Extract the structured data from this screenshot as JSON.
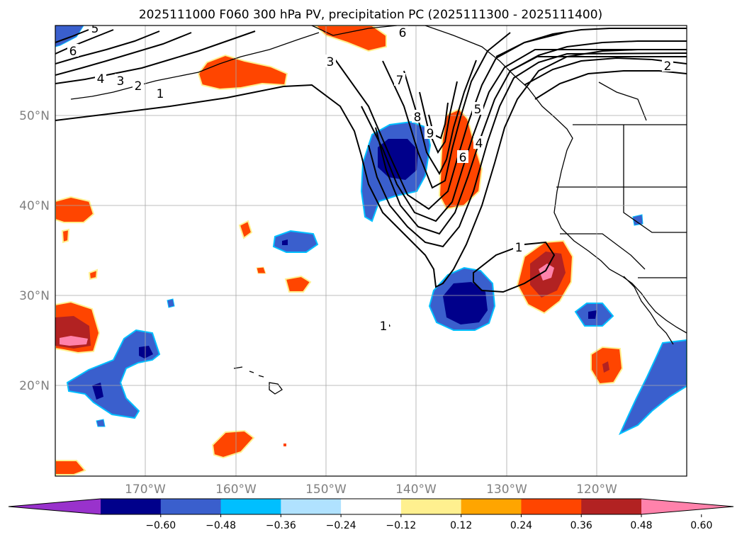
{
  "title": "2025111000 F060 300 hPa PV, precipitation PC (2025111300 - 2025111400)",
  "map": {
    "lon_range": [
      -180,
      -110
    ],
    "lat_range": [
      10,
      60
    ],
    "lat_ticks": [
      {
        "value": 50,
        "label": "50°N"
      },
      {
        "value": 40,
        "label": "40°N"
      },
      {
        "value": 30,
        "label": "30°N"
      },
      {
        "value": 20,
        "label": "20°N"
      }
    ],
    "lon_ticks": [
      {
        "value": -170,
        "label": "170°W"
      },
      {
        "value": -160,
        "label": "160°W"
      },
      {
        "value": -150,
        "label": "150°W"
      },
      {
        "value": -140,
        "label": "140°W"
      },
      {
        "value": -130,
        "label": "130°W"
      },
      {
        "value": -120,
        "label": "120°W"
      }
    ],
    "grid": true
  },
  "colorbar": {
    "levels": [
      -0.6,
      -0.48,
      -0.36,
      -0.24,
      -0.12,
      0.12,
      0.24,
      0.36,
      0.48,
      0.6
    ],
    "tick_labels": [
      "−0.60",
      "−0.48",
      "−0.36",
      "−0.24",
      "−0.12",
      "0.12",
      "0.24",
      "0.36",
      "0.48",
      "0.60"
    ],
    "colors": [
      "#9932cc",
      "#00008b",
      "#3a5fcd",
      "#00bfff",
      "#b0e2ff",
      "#ffffff",
      "#fff08f",
      "#ffa500",
      "#ff4500",
      "#b22222",
      "#ff82ab"
    ],
    "extend": "both"
  },
  "contour_labels": [
    "5",
    "6",
    "4",
    "3",
    "2",
    "1",
    "6",
    "3",
    "7",
    "8",
    "9",
    "5",
    "4",
    "6",
    "2",
    "1",
    "1"
  ]
}
